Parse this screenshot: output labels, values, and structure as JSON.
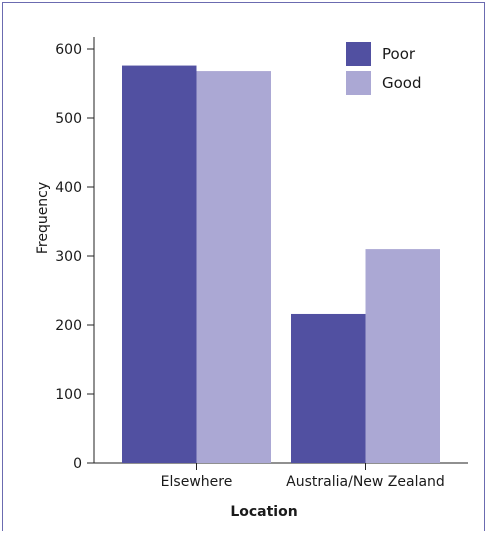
{
  "chart_data": {
    "type": "bar",
    "title": "",
    "xlabel": "Location",
    "ylabel": "Frequency",
    "categories": [
      "Elsewhere",
      "Australia/New Zealand"
    ],
    "series": [
      {
        "name": "Poor",
        "color": "#5150a1",
        "values": [
          576,
          216
        ]
      },
      {
        "name": "Good",
        "color": "#aba8d4",
        "values": [
          568,
          310
        ]
      }
    ],
    "ylim": [
      0,
      620
    ],
    "yticks": [
      0,
      100,
      200,
      300,
      400,
      500,
      600
    ],
    "grid": false,
    "legend_position": "top-right"
  }
}
